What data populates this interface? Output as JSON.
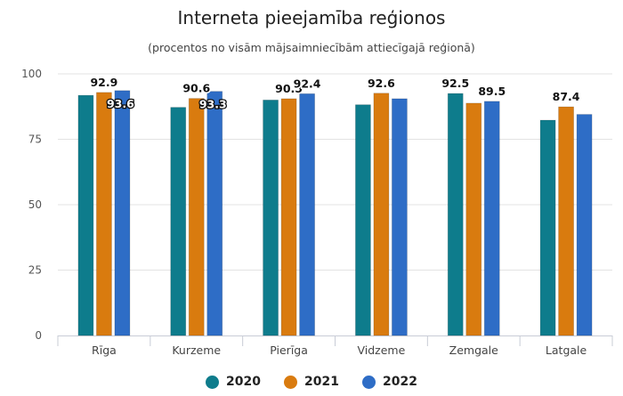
{
  "chart_data": {
    "type": "bar",
    "title": "Interneta pieejamība reģionos",
    "subtitle": "(procentos no visām mājsaimniecībām attiecīgajā reģionā)",
    "xlabel": "",
    "ylabel": "",
    "ylim": [
      0,
      100
    ],
    "yticks": [
      "0",
      "25",
      "50",
      "75",
      "100"
    ],
    "grid": true,
    "legend_position": "bottom",
    "categories": [
      "Rīga",
      "Kurzeme",
      "Pierīga",
      "Vidzeme",
      "Zemgale",
      "Latgale"
    ],
    "series": [
      {
        "name": "2020",
        "color": "#0E7C8C",
        "values": [
          91.8,
          87.2,
          90.0,
          88.2,
          92.5,
          82.3
        ]
      },
      {
        "name": "2021",
        "color": "#D97B0F",
        "values": [
          92.9,
          90.6,
          90.5,
          92.6,
          88.8,
          87.4
        ]
      },
      {
        "name": "2022",
        "color": "#2E6DC6",
        "values": [
          93.6,
          93.3,
          92.4,
          90.5,
          89.5,
          84.5
        ]
      }
    ],
    "data_labels": [
      {
        "category": "Rīga",
        "series": "2021",
        "text": "92.9",
        "style": "normal"
      },
      {
        "category": "Rīga",
        "series": "2022",
        "text": "93.6",
        "style": "inverse"
      },
      {
        "category": "Kurzeme",
        "series": "2021",
        "text": "90.6",
        "style": "normal"
      },
      {
        "category": "Kurzeme",
        "series": "2022",
        "text": "93.3",
        "style": "inverse"
      },
      {
        "category": "Pierīga",
        "series": "2021",
        "text": "90.5",
        "style": "normal"
      },
      {
        "category": "Pierīga",
        "series": "2022",
        "text": "92.4",
        "style": "normal"
      },
      {
        "category": "Vidzeme",
        "series": "2021",
        "text": "92.6",
        "style": "normal"
      },
      {
        "category": "Zemgale",
        "series": "2020",
        "text": "92.5",
        "style": "normal"
      },
      {
        "category": "Zemgale",
        "series": "2022",
        "text": "89.5",
        "style": "normal"
      },
      {
        "category": "Latgale",
        "series": "2021",
        "text": "87.4",
        "style": "normal"
      }
    ]
  }
}
